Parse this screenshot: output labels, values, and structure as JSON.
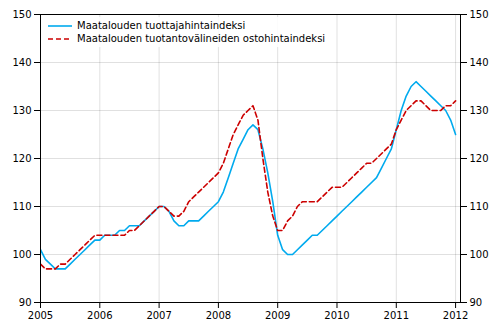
{
  "chart_data": {
    "type": "line",
    "x": [
      2005.0,
      2005.083,
      2005.167,
      2005.25,
      2005.333,
      2005.417,
      2005.5,
      2005.583,
      2005.667,
      2005.75,
      2005.833,
      2005.917,
      2006.0,
      2006.083,
      2006.167,
      2006.25,
      2006.333,
      2006.417,
      2006.5,
      2006.583,
      2006.667,
      2006.75,
      2006.833,
      2006.917,
      2007.0,
      2007.083,
      2007.167,
      2007.25,
      2007.333,
      2007.417,
      2007.5,
      2007.583,
      2007.667,
      2007.75,
      2007.833,
      2007.917,
      2008.0,
      2008.083,
      2008.167,
      2008.25,
      2008.333,
      2008.417,
      2008.5,
      2008.583,
      2008.667,
      2008.75,
      2008.833,
      2008.917,
      2009.0,
      2009.083,
      2009.167,
      2009.25,
      2009.333,
      2009.417,
      2009.5,
      2009.583,
      2009.667,
      2009.75,
      2009.833,
      2009.917,
      2010.0,
      2010.083,
      2010.167,
      2010.25,
      2010.333,
      2010.417,
      2010.5,
      2010.583,
      2010.667,
      2010.75,
      2010.833,
      2010.917,
      2011.0,
      2011.083,
      2011.167,
      2011.25,
      2011.333,
      2011.417,
      2011.5,
      2011.583,
      2011.667,
      2011.75,
      2011.833,
      2011.917,
      2012.0
    ],
    "series": [
      {
        "name": "Maatalouden tuottajahintaindeksi",
        "color": "#00aaee",
        "line_style": "solid",
        "values": [
          101,
          99,
          98,
          97,
          97,
          97,
          98,
          99,
          100,
          101,
          102,
          103,
          103,
          104,
          104,
          104,
          105,
          105,
          106,
          106,
          106,
          107,
          108,
          109,
          110,
          110,
          109,
          107,
          106,
          106,
          107,
          107,
          107,
          108,
          109,
          110,
          111,
          113,
          116,
          119,
          122,
          124,
          126,
          127,
          126,
          122,
          117,
          111,
          104,
          101,
          100,
          100,
          101,
          102,
          103,
          104,
          104,
          105,
          106,
          107,
          108,
          109,
          110,
          111,
          112,
          113,
          114,
          115,
          116,
          118,
          120,
          122,
          126,
          130,
          133,
          135,
          136,
          135,
          134,
          133,
          132,
          131,
          130,
          128,
          125
        ]
      },
      {
        "name": "Maatalouden tuotantovälineiden ostohintaindeksi",
        "color": "#cc0000",
        "line_style": "dashed",
        "values": [
          98,
          97,
          97,
          97,
          98,
          98,
          99,
          100,
          101,
          102,
          103,
          104,
          104,
          104,
          104,
          104,
          104,
          104,
          105,
          105,
          106,
          107,
          108,
          109,
          110,
          110,
          109,
          108,
          108,
          109,
          111,
          112,
          113,
          114,
          115,
          116,
          117,
          119,
          122,
          125,
          127,
          129,
          130,
          131,
          128,
          120,
          113,
          108,
          105,
          105,
          107,
          108,
          110,
          111,
          111,
          111,
          111,
          112,
          113,
          114,
          114,
          114,
          115,
          116,
          117,
          118,
          119,
          119,
          120,
          121,
          122,
          123,
          126,
          128,
          130,
          131,
          132,
          132,
          131,
          130,
          130,
          130,
          131,
          131,
          132
        ]
      }
    ],
    "xlim": [
      2005.0,
      2012.083
    ],
    "xticks": [
      2005,
      2006,
      2007,
      2008,
      2009,
      2010,
      2011,
      2012
    ],
    "ylim": [
      90,
      150
    ],
    "yticks": [
      90,
      100,
      110,
      120,
      130,
      140,
      150
    ],
    "y2lim": [
      90,
      150
    ],
    "y2ticks": [
      90,
      100,
      110,
      120,
      130,
      140,
      150
    ],
    "grid": true,
    "legend": "upper left"
  }
}
